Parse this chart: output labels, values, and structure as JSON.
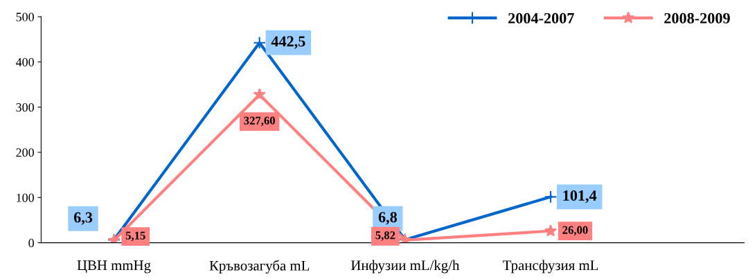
{
  "chart_data": {
    "type": "line",
    "categories": [
      "ЦВН mmHg",
      "Кръвозагуба mL",
      "Инфузии mL/kg/h",
      "Трансфузия mL"
    ],
    "series": [
      {
        "name": "2004-2007",
        "color": "#0066cc",
        "marker": "cross",
        "values": [
          6.3,
          442.5,
          6.8,
          101.4
        ],
        "value_labels": [
          "6,3",
          "442,5",
          "6,8",
          "101,4"
        ]
      },
      {
        "name": "2008-2009",
        "color": "#ff8080",
        "marker": "star",
        "values": [
          5.15,
          327.6,
          5.82,
          26.0
        ],
        "value_labels": [
          "5,15",
          "327,60",
          "5,82",
          "26,00"
        ]
      }
    ],
    "ylim": [
      0,
      500
    ],
    "yticks": [
      0,
      100,
      200,
      300,
      400,
      500
    ],
    "grid": false,
    "legend": "top right"
  }
}
